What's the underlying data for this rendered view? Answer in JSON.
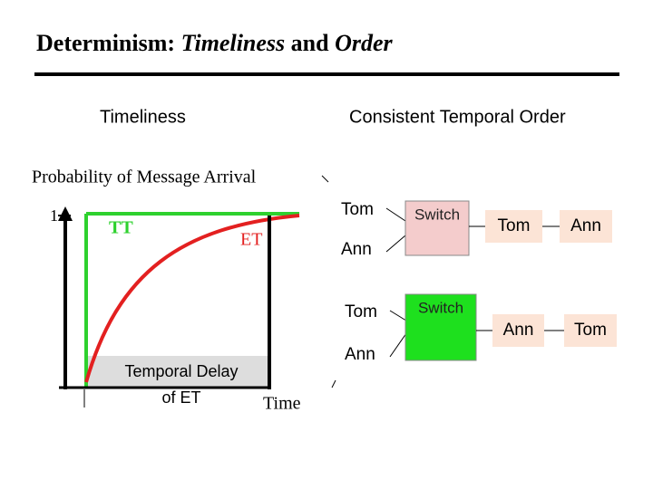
{
  "title": {
    "prefix": "Determinism: ",
    "em1": "Timeliness",
    "mid": " and ",
    "em2": "Order"
  },
  "left": {
    "heading": "Timeliness",
    "y_label": "Probability of Message Arrival",
    "y_tick": "1",
    "tt": "TT",
    "et": "ET",
    "delay": [
      "Temporal Delay",
      "of ET"
    ],
    "x_label": "Time"
  },
  "right": {
    "heading": "Consistent Temporal Order",
    "rows": [
      {
        "inputs": [
          "Tom",
          "Ann"
        ],
        "switch": "Switch",
        "outputs": [
          "Tom",
          "Ann"
        ]
      },
      {
        "inputs": [
          "Tom",
          "Ann"
        ],
        "switch": "Switch",
        "outputs": [
          "Ann",
          "Tom"
        ]
      }
    ]
  }
}
